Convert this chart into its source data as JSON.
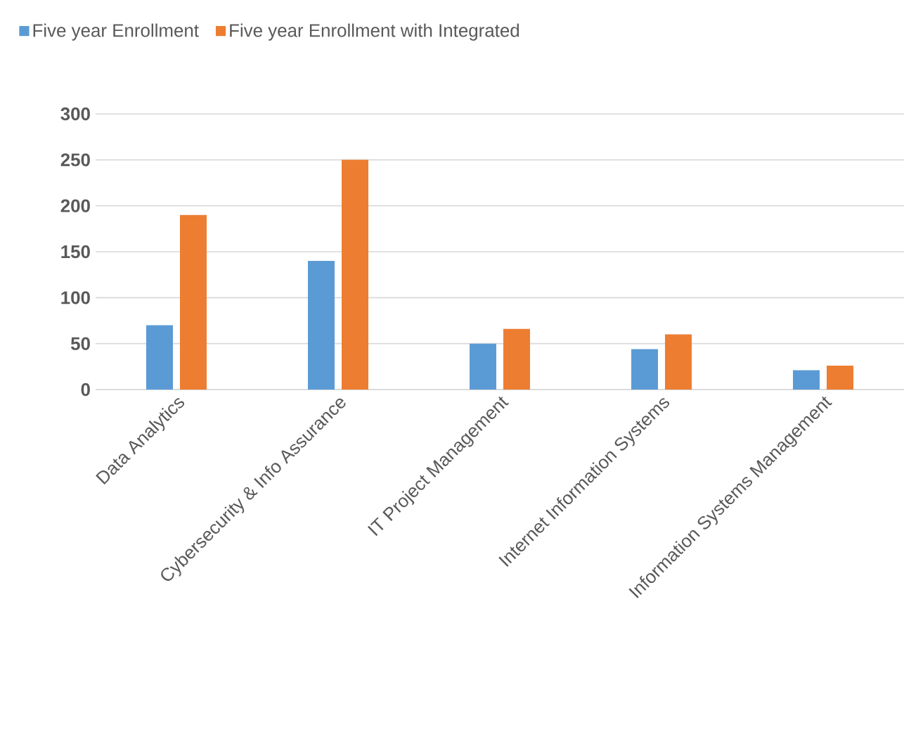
{
  "chart_data": {
    "type": "bar",
    "categories": [
      "Data Analytics",
      "Cybersecurity & Info Assurance",
      "IT Project Management",
      "Internet Information Systems",
      "Information Systems Management"
    ],
    "series": [
      {
        "name": "Five year Enrollment",
        "color": "#5b9bd5",
        "values": [
          70,
          140,
          50,
          44,
          21
        ]
      },
      {
        "name": "Five year Enrollment with Integrated",
        "color": "#ed7d31",
        "values": [
          190,
          250,
          66,
          60,
          26
        ]
      }
    ],
    "ylim": [
      0,
      300
    ],
    "yticks": [
      0,
      50,
      100,
      150,
      200,
      250,
      300
    ],
    "grid": "y",
    "legend": "top left"
  }
}
